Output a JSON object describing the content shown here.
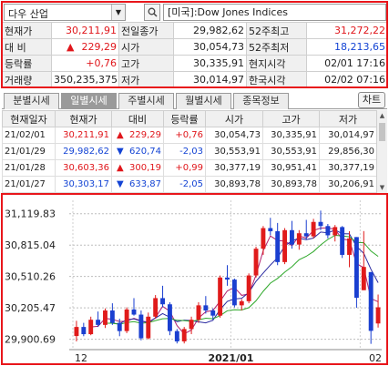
{
  "search": {
    "market": "다우 산업",
    "name": "[미국]:Dow Jones Indices"
  },
  "quote": {
    "rows": [
      [
        {
          "l": "현재가",
          "v": "30,211,91",
          "c": "red"
        },
        {
          "l": "전일종가",
          "v": "29,982,62",
          "c": ""
        },
        {
          "l": "52주최고",
          "v": "31,272,22",
          "c": "red"
        }
      ],
      [
        {
          "l": "대  비",
          "v": "229,29",
          "c": "red",
          "arrow": "▲"
        },
        {
          "l": "시가",
          "v": "30,054,73",
          "c": ""
        },
        {
          "l": "52주최저",
          "v": "18,213,65",
          "c": "blue"
        }
      ],
      [
        {
          "l": "등락률",
          "v": "+0,76",
          "c": "red"
        },
        {
          "l": "고가",
          "v": "30,335,91",
          "c": ""
        },
        {
          "l": "현지시각",
          "v": "02/01 17:16",
          "c": ""
        }
      ],
      [
        {
          "l": "거래량",
          "v": "350,235,375",
          "c": ""
        },
        {
          "l": "저가",
          "v": "30,014,97",
          "c": ""
        },
        {
          "l": "한국시각",
          "v": "02/02 07:16",
          "c": ""
        }
      ]
    ]
  },
  "tabs": [
    "분별시세",
    "일별시세",
    "주별시세",
    "월별시세",
    "종목정보"
  ],
  "active_tab": 1,
  "chart_button": "차트",
  "daily": {
    "headers": [
      "현재일자",
      "현재가",
      "대비",
      "등락률",
      "시가",
      "고가",
      "저가"
    ],
    "rows": [
      {
        "date": "21/02/01",
        "close": "30,211,91",
        "arrow": "▲",
        "chg": "229,29",
        "pct": "+0,76",
        "open": "30,054,73",
        "high": "30,335,91",
        "low": "30,014,97",
        "c": "red"
      },
      {
        "date": "21/01/29",
        "close": "29,982,62",
        "arrow": "▼",
        "chg": "620,74",
        "pct": "-2,03",
        "open": "30,553,91",
        "high": "30,553,91",
        "low": "29,856,30",
        "c": "blue"
      },
      {
        "date": "21/01/28",
        "close": "30,603,36",
        "arrow": "▲",
        "chg": "300,19",
        "pct": "+0,99",
        "open": "30,377,19",
        "high": "30,951,41",
        "low": "30,377,19",
        "c": "red"
      },
      {
        "date": "21/01/27",
        "close": "30,303,17",
        "arrow": "▼",
        "chg": "633,87",
        "pct": "-2,05",
        "open": "30,893,78",
        "high": "30,893,78",
        "low": "30,206,91",
        "c": "blue"
      }
    ]
  },
  "chart_data": {
    "type": "candlestick",
    "y_ticks": [
      "31,119.83",
      "30,815.04",
      "30,510.26",
      "30,205.47",
      "29,900.69"
    ],
    "y_tick_values": [
      31119.83,
      30815.04,
      30510.26,
      30205.47,
      29900.69
    ],
    "x_labels": [
      "12",
      "2021/01",
      "02"
    ],
    "x_label_positions": [
      0,
      22,
      40
    ],
    "ylim": [
      29800,
      31250
    ],
    "up_color": "#e01b1b",
    "down_color": "#1a3fd0",
    "ma_colors": [
      "#b0206d",
      "#2a2aa0",
      "#2ea82a"
    ],
    "ohlc": [
      [
        29932,
        30080,
        29880,
        30020
      ],
      [
        30020,
        30060,
        29930,
        29950
      ],
      [
        29950,
        30120,
        29940,
        30090
      ],
      [
        30090,
        30170,
        30020,
        30040
      ],
      [
        30040,
        30200,
        30010,
        30180
      ],
      [
        30180,
        30250,
        30040,
        30060
      ],
      [
        30060,
        30100,
        29930,
        29980
      ],
      [
        29980,
        30210,
        29960,
        30190
      ],
      [
        30190,
        30300,
        30130,
        30140
      ],
      [
        30140,
        30180,
        29890,
        29910
      ],
      [
        29910,
        30160,
        29900,
        30120
      ],
      [
        30120,
        30330,
        30100,
        30300
      ],
      [
        30300,
        30420,
        30210,
        30240
      ],
      [
        30240,
        30260,
        29940,
        29980
      ],
      [
        29980,
        30000,
        29860,
        29880
      ],
      [
        29880,
        30020,
        29860,
        30000
      ],
      [
        30000,
        30120,
        29950,
        30090
      ],
      [
        30090,
        30260,
        30060,
        30230
      ],
      [
        30230,
        30320,
        30150,
        30180
      ],
      [
        30180,
        30200,
        30090,
        30130
      ],
      [
        30130,
        30520,
        30110,
        30500
      ],
      [
        30500,
        30620,
        30420,
        30480
      ],
      [
        30480,
        30490,
        30210,
        30230
      ],
      [
        30230,
        30290,
        30180,
        30270
      ],
      [
        30270,
        30540,
        30250,
        30520
      ],
      [
        30520,
        30800,
        30500,
        30780
      ],
      [
        30780,
        31000,
        30720,
        30980
      ],
      [
        30980,
        31080,
        30910,
        30950
      ],
      [
        30950,
        31030,
        30620,
        30650
      ],
      [
        30650,
        30980,
        30630,
        30960
      ],
      [
        30960,
        31050,
        30780,
        30820
      ],
      [
        30820,
        30960,
        30770,
        30930
      ],
      [
        30930,
        31060,
        30870,
        30900
      ],
      [
        30900,
        31070,
        30880,
        31040
      ],
      [
        31040,
        31150,
        30960,
        31000
      ],
      [
        31000,
        31020,
        30880,
        30910
      ],
      [
        30910,
        31010,
        30850,
        30990
      ],
      [
        30990,
        31000,
        30690,
        30720
      ],
      [
        30720,
        30950,
        30600,
        30880
      ],
      [
        30893,
        30893,
        30206,
        30303
      ],
      [
        30377,
        30951,
        30377,
        30603
      ],
      [
        30553,
        30553,
        29856,
        29982
      ],
      [
        30054,
        30335,
        30014,
        30211
      ]
    ]
  }
}
